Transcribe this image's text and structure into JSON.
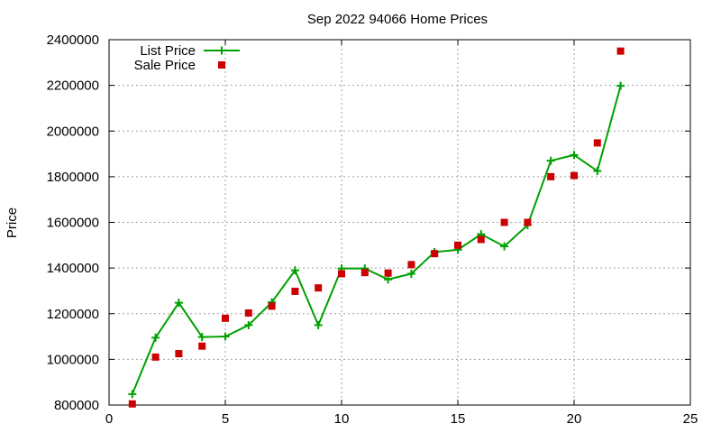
{
  "chart_data": {
    "type": "line",
    "title": "Sep 2022 94066 Home Prices",
    "xlabel": "",
    "ylabel": "Price",
    "xlim": [
      0,
      25
    ],
    "ylim": [
      800000,
      2400000
    ],
    "x_ticks": [
      0,
      5,
      10,
      15,
      20,
      25
    ],
    "y_ticks": [
      800000,
      1000000,
      1200000,
      1400000,
      1600000,
      1800000,
      2000000,
      2200000,
      2400000
    ],
    "grid": true,
    "legend_position": "top-left",
    "series": [
      {
        "name": "List Price",
        "style": "line-with-plus-markers",
        "color": "#00a000",
        "x": [
          1,
          2,
          3,
          4,
          5,
          6,
          7,
          8,
          9,
          10,
          11,
          12,
          13,
          14,
          15,
          16,
          17,
          18,
          19,
          20,
          21,
          22
        ],
        "y": [
          848000,
          1095000,
          1248000,
          1098000,
          1100000,
          1150000,
          1250000,
          1390000,
          1150000,
          1398000,
          1398000,
          1350000,
          1375000,
          1470000,
          1480000,
          1548000,
          1495000,
          1588000,
          1870000,
          1895000,
          1825000,
          2198000
        ]
      },
      {
        "name": "Sale Price",
        "style": "square-markers",
        "color": "#cc0000",
        "x": [
          1,
          2,
          3,
          4,
          5,
          6,
          7,
          8,
          9,
          10,
          11,
          12,
          13,
          14,
          15,
          16,
          17,
          18,
          19,
          20,
          21,
          22
        ],
        "y": [
          805000,
          1010000,
          1025000,
          1058000,
          1180000,
          1203000,
          1233000,
          1298000,
          1313000,
          1375000,
          1380000,
          1378000,
          1415000,
          1463000,
          1500000,
          1525000,
          1600000,
          1600000,
          1800000,
          1805000,
          1948000,
          2350000
        ]
      }
    ]
  }
}
